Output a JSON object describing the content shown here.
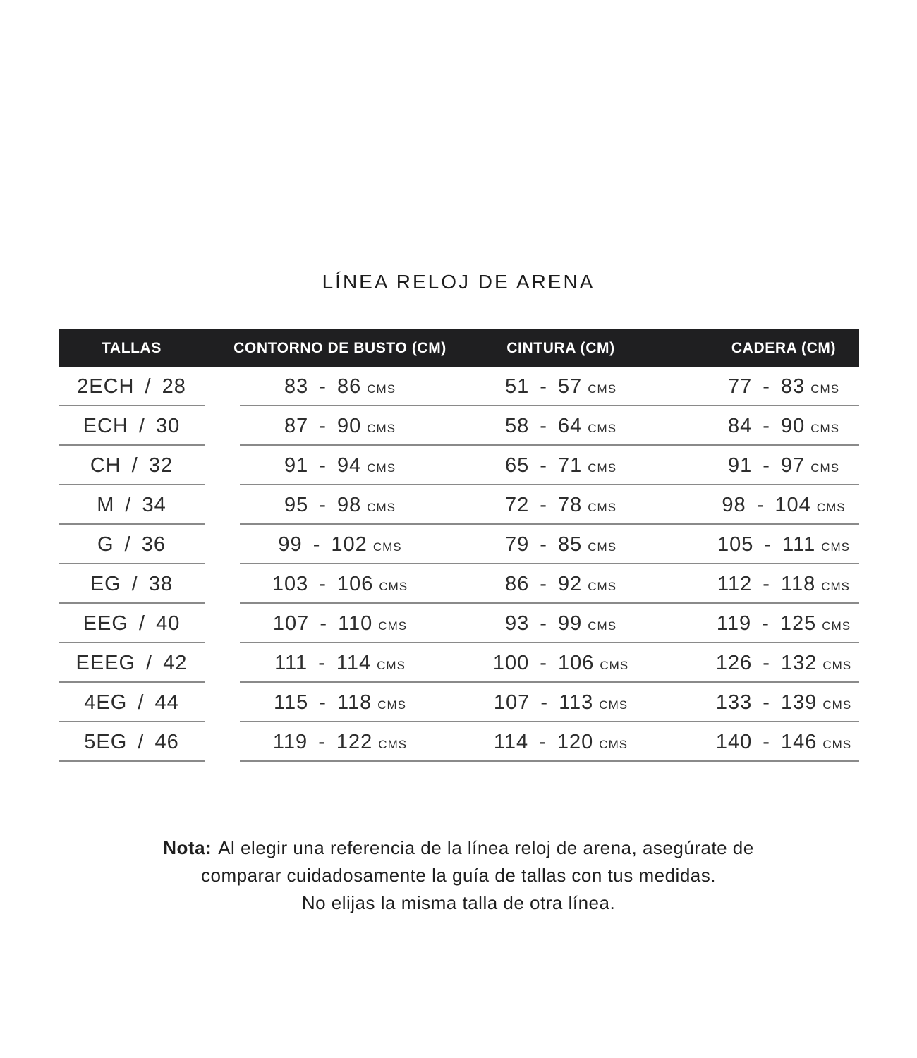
{
  "title": "LÍNEA RELOJ DE ARENA",
  "table": {
    "headers": [
      "TALLAS",
      "CONTORNO DE BUSTO (CM)",
      "CINTURA (CM)",
      "CADERA (CM)"
    ],
    "unit_label": "CMS",
    "rows": [
      {
        "talla": "2ECH / 28",
        "busto": "83 - 86",
        "cintura": "51 - 57",
        "cadera": "77 - 83"
      },
      {
        "talla": "ECH / 30",
        "busto": "87 - 90",
        "cintura": "58 - 64",
        "cadera": "84 - 90"
      },
      {
        "talla": "CH / 32",
        "busto": "91 - 94",
        "cintura": "65 - 71",
        "cadera": "91 - 97"
      },
      {
        "talla": "M / 34",
        "busto": "95 - 98",
        "cintura": "72 - 78",
        "cadera": "98 - 104"
      },
      {
        "talla": "G / 36",
        "busto": "99 - 102",
        "cintura": "79 - 85",
        "cadera": "105 - 111"
      },
      {
        "talla": "EG / 38",
        "busto": "103 - 106",
        "cintura": "86 - 92",
        "cadera": "112 - 118"
      },
      {
        "talla": "EEG / 40",
        "busto": "107 - 110",
        "cintura": "93 - 99",
        "cadera": "119 - 125"
      },
      {
        "talla": "EEEG / 42",
        "busto": "111 - 114",
        "cintura": "100 - 106",
        "cadera": "126 - 132"
      },
      {
        "talla": "4EG / 44",
        "busto": "115 - 118",
        "cintura": "107 - 113",
        "cadera": "133 - 139"
      },
      {
        "talla": "5EG / 46",
        "busto": "119 - 122",
        "cintura": "114 - 120",
        "cadera": "140 - 146"
      }
    ]
  },
  "note": {
    "label": "Nota:",
    "line1": "Al elegir una referencia de la línea reloj de arena, asegúrate de",
    "line2": "comparar cuidadosamente la guía de tallas con tus medidas.",
    "line3": "No elijas la misma talla de otra línea."
  },
  "colors": {
    "header_bg": "#1f1f21",
    "header_text": "#ffffff",
    "separator": "#8a8a8a",
    "body_text": "#2d2d2d"
  }
}
